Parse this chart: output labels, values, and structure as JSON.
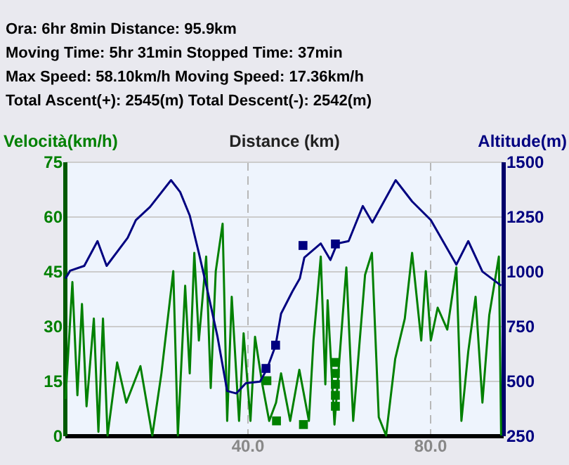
{
  "chart_data": {
    "type": "line",
    "annotations": [
      "Ora: 6hr 8min  Distance: 95.9km",
      "Moving Time: 5hr 31min  Stopped Time: 37min",
      "Max Speed: 58.10km/h  Moving Speed: 17.36km/h",
      "Total Ascent(+): 2545(m)  Total Descent(-): 2542(m)"
    ],
    "xlabel": "Distance (km)",
    "ylabel": "Velocità(km/h)",
    "y2label": "Altitude(m)",
    "xlim": [
      0,
      96
    ],
    "xticks": [
      {
        "value": 40,
        "label": "40.0"
      },
      {
        "value": 80,
        "label": "80.0"
      }
    ],
    "ylim": [
      0,
      75
    ],
    "yticks": [
      0,
      15,
      30,
      45,
      60,
      75
    ],
    "y2lim": [
      250,
      1500
    ],
    "y2ticks": [
      250,
      500,
      750,
      1000,
      1250,
      1500
    ],
    "grid": true,
    "series": [
      {
        "type": "line",
        "color": "#008000",
        "x": [
          0.2,
          1.7,
          2.8,
          3.8,
          4.8,
          6.4,
          7.4,
          8.4,
          9.4,
          11.5,
          13.5,
          16.6,
          19.2,
          21.2,
          23.8,
          24.8,
          26.4,
          27.4,
          28.4,
          29.4,
          31.0,
          32.0,
          33.1,
          34.6,
          35.6,
          36.6,
          38.2,
          39.2,
          40.7,
          41.7,
          43.3,
          44.8,
          46.3,
          47.4,
          49.4,
          51.4,
          53.5,
          54.5,
          56.1,
          57.1,
          57.6,
          59.1,
          61.7,
          63.2,
          65.8,
          67.3,
          68.8,
          70.4,
          72.4,
          74.5,
          76.1,
          78.1,
          79.1,
          80.2,
          81.7,
          83.8,
          85.8,
          86.9,
          88.4,
          90.0,
          91.5,
          93.0,
          95.1,
          95.6
        ],
        "values": [
          10,
          42,
          11,
          36,
          8,
          32,
          1,
          32,
          0,
          20,
          9,
          19,
          0,
          17,
          45,
          0,
          41,
          17,
          50,
          26,
          49,
          13,
          45,
          58,
          4,
          38,
          4,
          28,
          4,
          27,
          14,
          4,
          9,
          17,
          4,
          18,
          4,
          26,
          49,
          14,
          37,
          3,
          46,
          4,
          44,
          50,
          5,
          0,
          21,
          32,
          50,
          26,
          45,
          26,
          35,
          29,
          46,
          4,
          23,
          38,
          9,
          33,
          49,
          0
        ]
      },
      {
        "type": "line",
        "axis": "y2",
        "color": "#000080",
        "x": [
          0.2,
          1.2,
          4.3,
          7.2,
          9.2,
          13.8,
          15.6,
          18.7,
          23.3,
          25.3,
          27.4,
          29.4,
          31.5,
          33.5,
          35.6,
          37.6,
          39.7,
          42.8,
          44.3,
          46.2,
          47.4,
          49.9,
          51.5,
          52.5,
          56.1,
          58.2,
          59.7,
          62.2,
          65.3,
          67.4,
          72.5,
          76.1,
          80.2,
          85.8,
          88.4,
          91.5,
          95.6
        ],
        "values": [
          966,
          1002,
          1024,
          1137,
          1024,
          1152,
          1233,
          1293,
          1415,
          1361,
          1254,
          1083,
          891,
          699,
          453,
          442,
          489,
          496,
          553,
          660,
          806,
          908,
          966,
          1062,
          1126,
          1051,
          1126,
          1137,
          1297,
          1222,
          1415,
          1318,
          1233,
          1030,
          1137,
          998,
          934
        ]
      },
      {
        "type": "scatter",
        "axis": "y2",
        "marker": "square",
        "color": "#000080",
        "x": [
          44.1,
          46.2,
          52.2,
          59.3
        ],
        "values": [
          556,
          662,
          1117,
          1124
        ]
      },
      {
        "type": "scatter",
        "marker": "square",
        "color": "#008000",
        "x": [
          44.3,
          46.4,
          52.3,
          59.3,
          59.3,
          59.3,
          59.3,
          59.3
        ],
        "values": [
          15,
          4,
          3,
          20,
          17,
          14,
          11,
          8
        ]
      }
    ]
  }
}
